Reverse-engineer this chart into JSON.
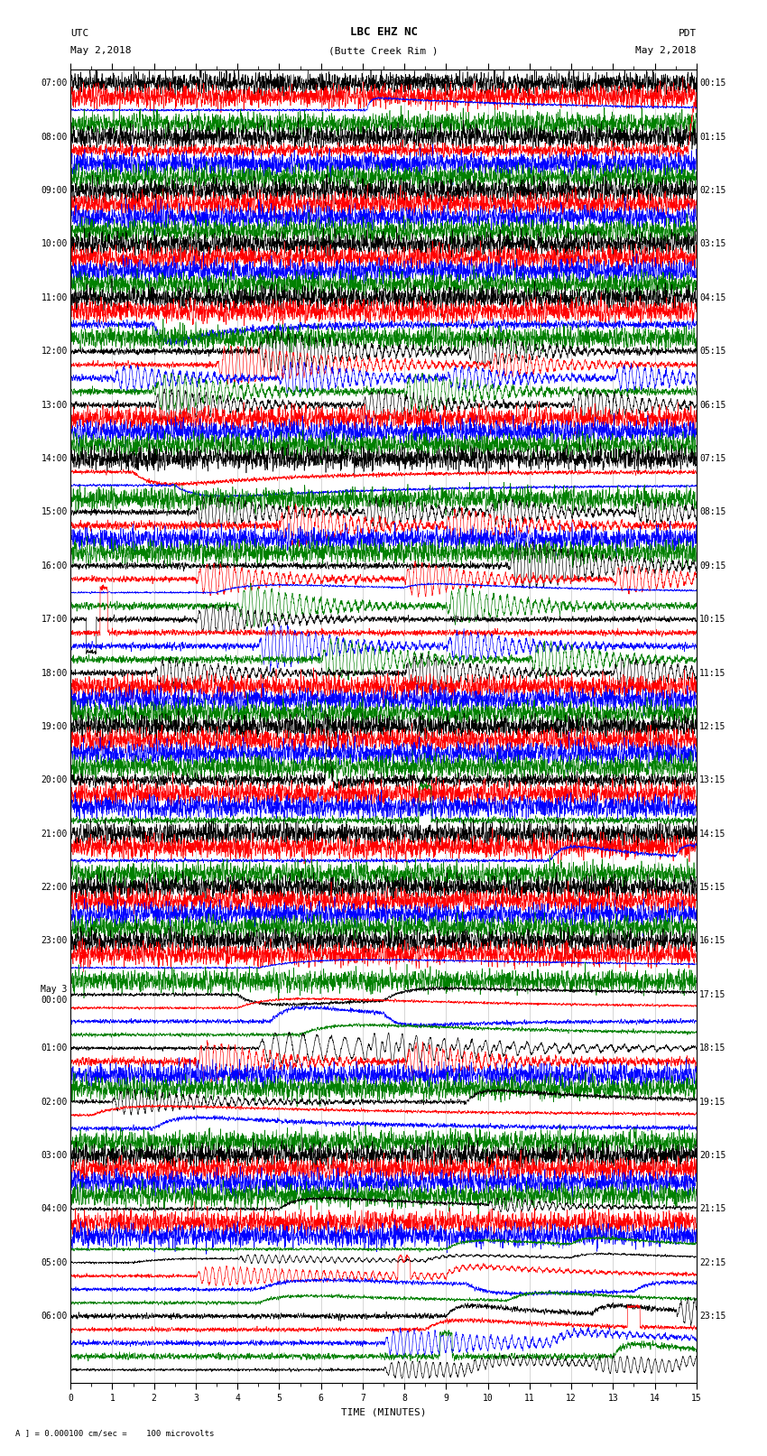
{
  "title_line1": "LBC EHZ NC",
  "title_line2": "(Butte Creek Rim )",
  "scale_label": "= 0.000100 cm/sec",
  "left_label": "UTC",
  "left_date": "May 2,2018",
  "right_label": "PDT",
  "right_date": "May 2,2018",
  "xlabel": "TIME (MINUTES)",
  "footer": "A ] = 0.000100 cm/sec =    100 microvolts",
  "xlim": [
    0,
    15
  ],
  "xticks": [
    0,
    1,
    2,
    3,
    4,
    5,
    6,
    7,
    8,
    9,
    10,
    11,
    12,
    13,
    14,
    15
  ],
  "background_color": "#ffffff",
  "trace_colors": [
    "black",
    "red",
    "blue",
    "green"
  ],
  "utc_hour_labels": [
    "07:00",
    "08:00",
    "09:00",
    "10:00",
    "11:00",
    "12:00",
    "13:00",
    "14:00",
    "15:00",
    "16:00",
    "17:00",
    "18:00",
    "19:00",
    "20:00",
    "21:00",
    "22:00",
    "23:00",
    "May 3\n00:00",
    "01:00",
    "02:00",
    "03:00",
    "04:00",
    "05:00",
    "06:00"
  ],
  "pdt_hour_labels": [
    "00:15",
    "01:15",
    "02:15",
    "03:15",
    "04:15",
    "05:15",
    "06:15",
    "07:15",
    "08:15",
    "09:15",
    "10:15",
    "11:15",
    "12:15",
    "13:15",
    "14:15",
    "15:15",
    "16:15",
    "17:15",
    "18:15",
    "19:15",
    "20:15",
    "21:15",
    "22:15",
    "23:15"
  ],
  "num_traces": 97,
  "traces_per_hour": 4,
  "grid_color": "#888888",
  "font_size_title": 9,
  "font_size_label": 8,
  "font_size_tick": 7,
  "linewidth": 0.45
}
